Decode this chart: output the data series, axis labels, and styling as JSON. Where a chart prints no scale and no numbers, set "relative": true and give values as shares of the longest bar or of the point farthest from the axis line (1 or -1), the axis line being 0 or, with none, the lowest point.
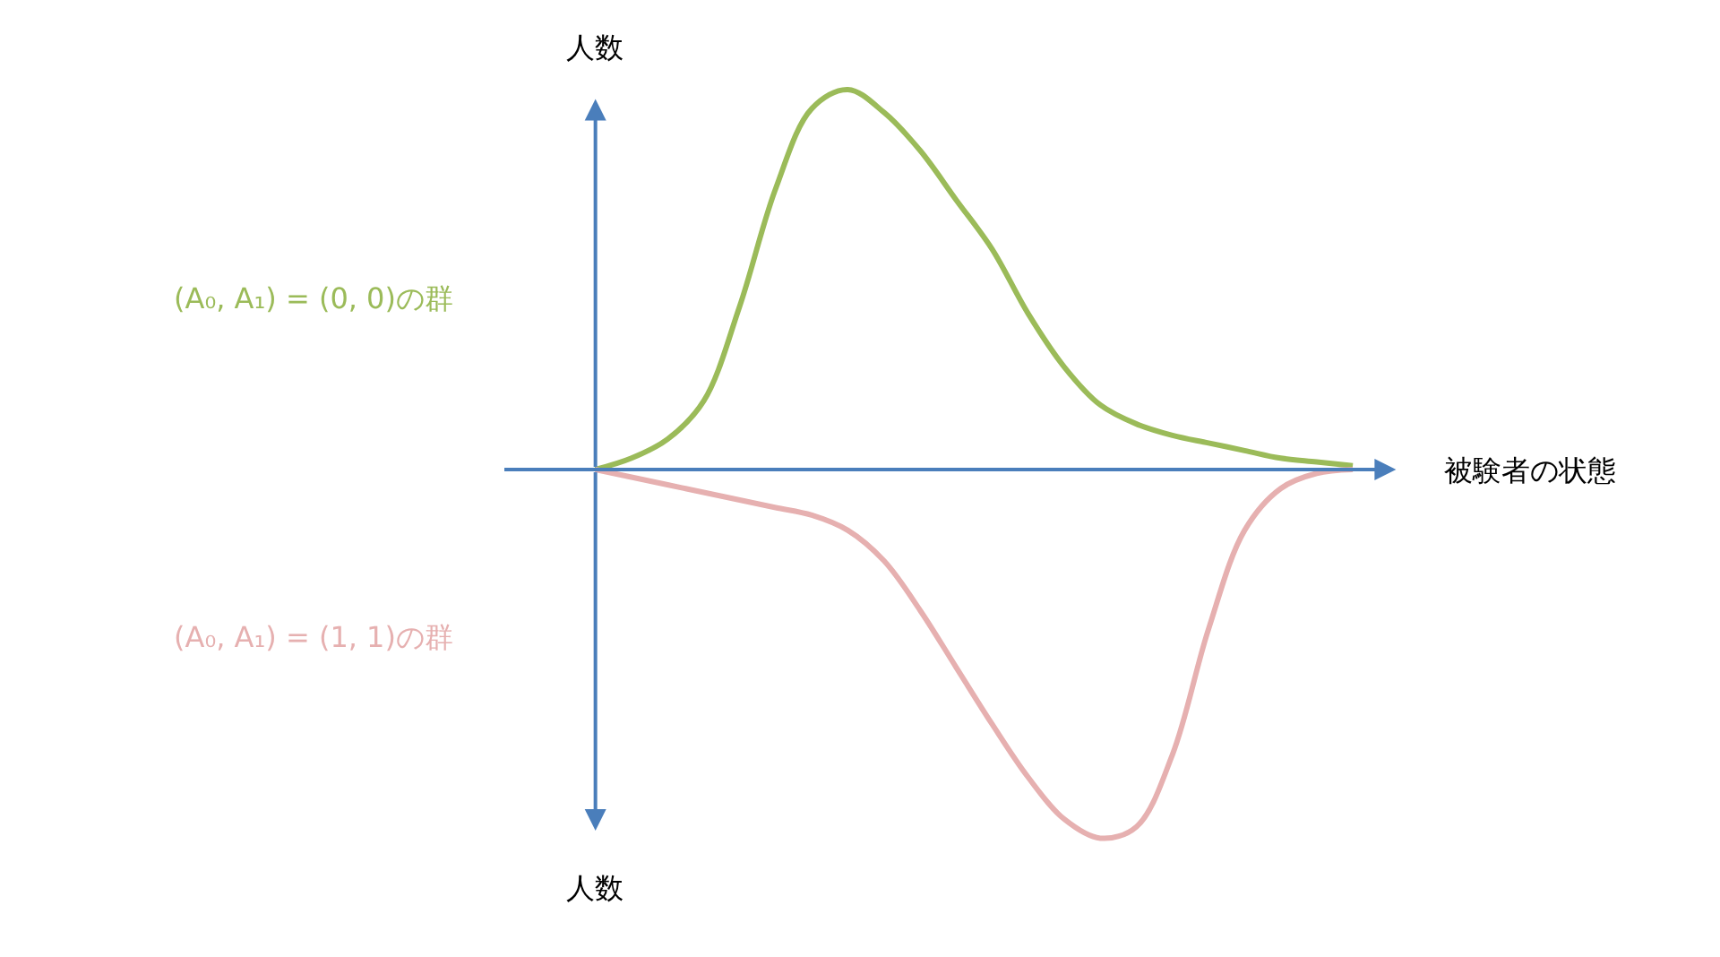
{
  "chart_data": {
    "type": "line",
    "relative": true,
    "xlabel": "被験者の状態",
    "ylabel": "人数",
    "categories": [
      null,
      null,
      null,
      null,
      null,
      null,
      null,
      null,
      null,
      null,
      null,
      null,
      null,
      null,
      null,
      null,
      null,
      null,
      null,
      null,
      null,
      null
    ],
    "series": [
      {
        "name": "(A₀, A₁) = (0, 0)の群",
        "color": "#9bbb59",
        "values": [
          0,
          0.03,
          0.08,
          0.18,
          0.43,
          0.74,
          0.95,
          1,
          0.94,
          0.84,
          0.71,
          0.58,
          0.41,
          0.27,
          0.17,
          0.12,
          0.09,
          0.07,
          0.05,
          0.03,
          0.02,
          0.01
        ]
      },
      {
        "name": "(A₀, A₁) = (1, 1)の群",
        "color": "#e6b0b0",
        "values": [
          0,
          -0.02,
          -0.04,
          -0.06,
          -0.08,
          -0.1,
          -0.12,
          -0.16,
          -0.24,
          -0.37,
          -0.52,
          -0.67,
          -0.81,
          -0.92,
          -0.97,
          -0.94,
          -0.75,
          -0.42,
          -0.16,
          -0.05,
          -0.01,
          0
        ]
      }
    ]
  }
}
